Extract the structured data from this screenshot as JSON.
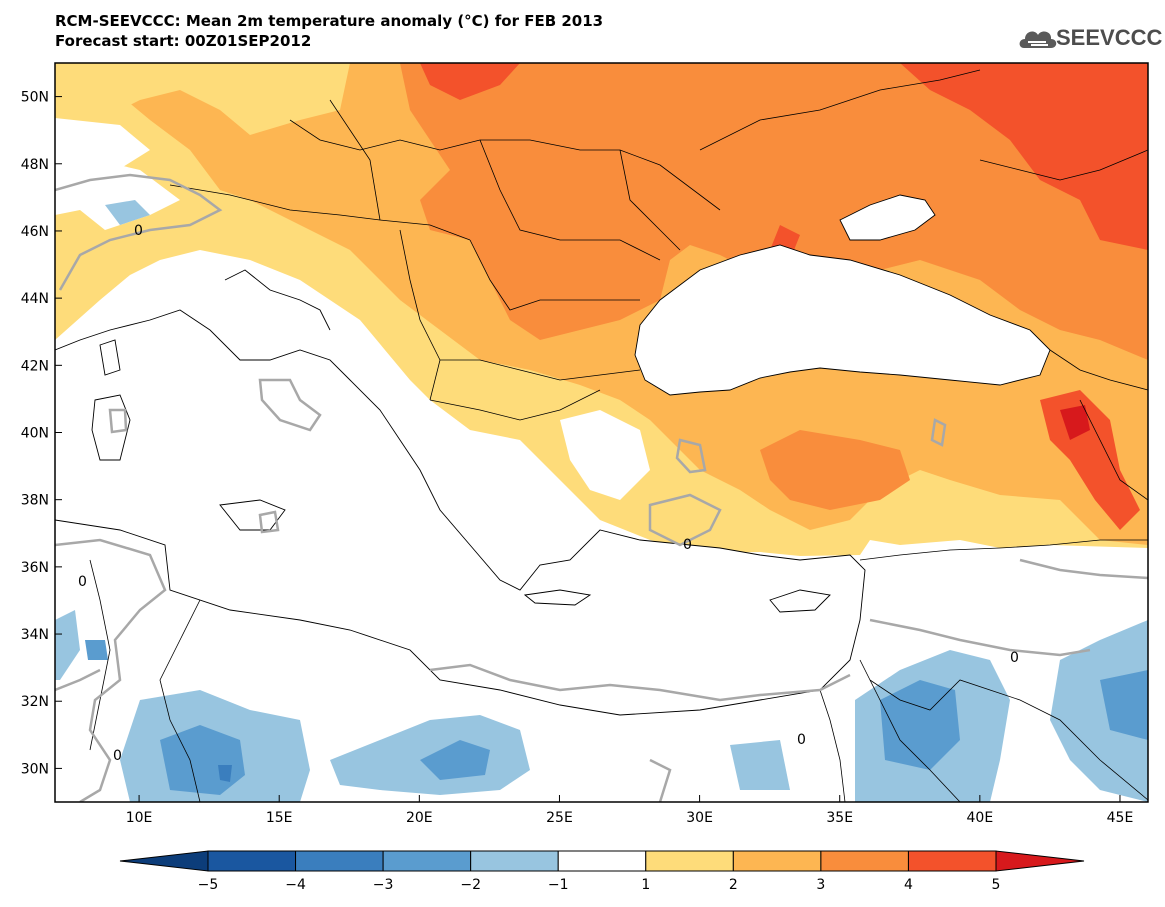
{
  "header": {
    "title_line1": "RCM-SEEVCCC: Mean 2m temperature anomaly (°C) for FEB 2013",
    "title_line2": "Forecast start: 00Z01SEP2012"
  },
  "logo": {
    "text": "SEEVCCC",
    "icon": "cloud-icon",
    "color": "#4d4d4d"
  },
  "map": {
    "lon_range": [
      7,
      46
    ],
    "lat_range": [
      29,
      51
    ],
    "y_ticks": [
      "50N",
      "48N",
      "46N",
      "44N",
      "42N",
      "40N",
      "38N",
      "36N",
      "34N",
      "32N",
      "30N"
    ],
    "x_ticks": [
      "10E",
      "15E",
      "20E",
      "25E",
      "30E",
      "35E",
      "40E",
      "45E"
    ],
    "contour_label": "0"
  },
  "colorbar": {
    "labels": [
      "−5",
      "−4",
      "−3",
      "−2",
      "−1",
      "1",
      "2",
      "3",
      "4",
      "5"
    ],
    "colors": [
      "#1a57a0",
      "#3a7ebe",
      "#5a9ccf",
      "#98c5e0",
      "#ffffff",
      "#fedc7a",
      "#fdb652",
      "#f98d3c",
      "#f3522b",
      "#d7191c"
    ],
    "extend_low_color": "#0c3d7a",
    "extend_high_color": "#d7191c"
  }
}
